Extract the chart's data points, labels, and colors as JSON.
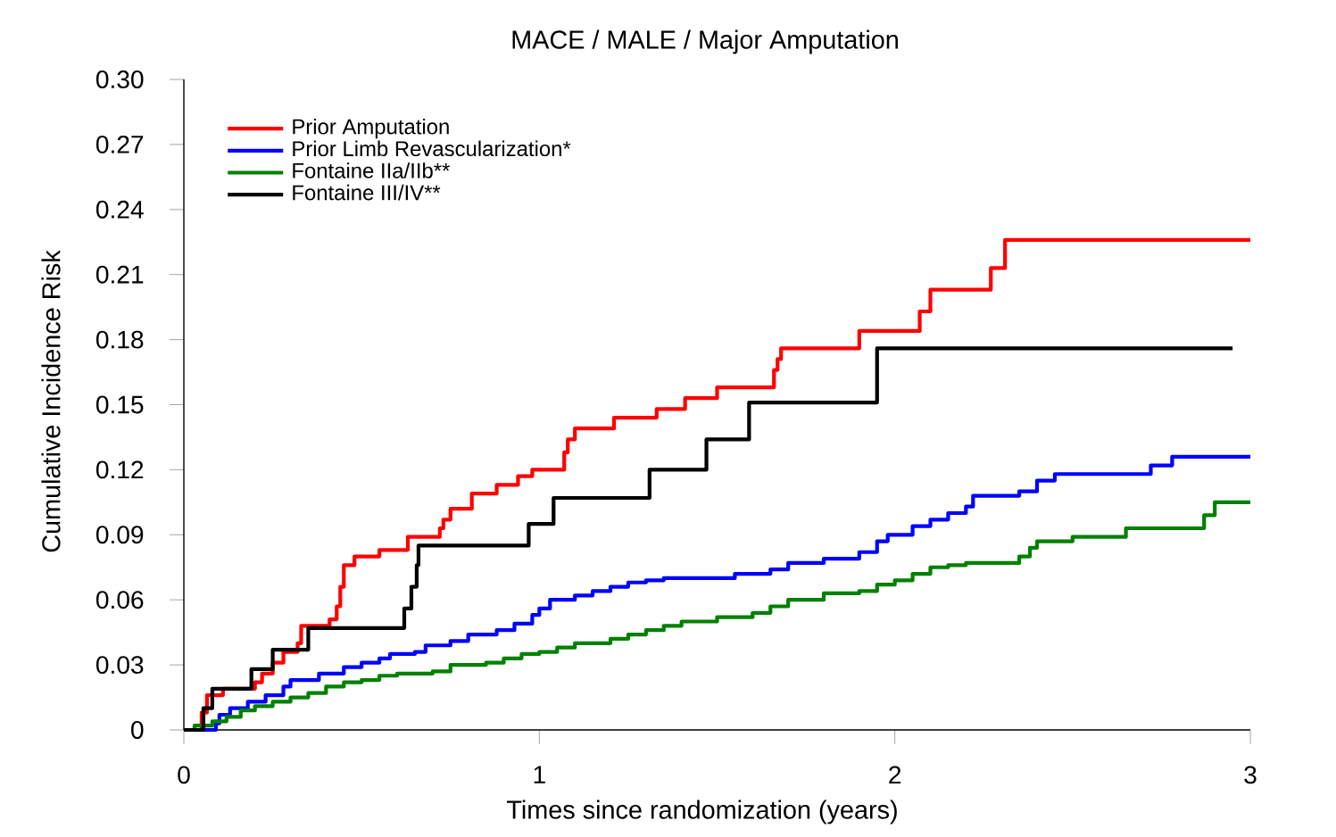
{
  "chart_data": {
    "type": "step",
    "title": "MACE / MALE / Major Amputation",
    "xlabel": "Times since randomization (years)",
    "ylabel": "Cumulative Incidence Risk",
    "xlim": [
      0,
      3
    ],
    "xticks": [
      0,
      1,
      2,
      3
    ],
    "ylim": [
      0,
      0.3
    ],
    "yticks": [
      {
        "value": 0,
        "label": "0"
      },
      0.03,
      0.06,
      0.09,
      0.12,
      0.15,
      0.18,
      0.21,
      0.24,
      0.27,
      {
        "value": 0.3,
        "label": "0.30"
      }
    ],
    "grid": false,
    "legend": "top left",
    "line_style": "solid",
    "marker": "none",
    "series": [
      {
        "name": "Prior Amputation",
        "color": "#ff0000",
        "x": [
          0,
          0.05,
          0.065,
          0.11,
          0.2,
          0.22,
          0.25,
          0.28,
          0.32,
          0.33,
          0.41,
          0.43,
          0.44,
          0.45,
          0.48,
          0.55,
          0.63,
          0.72,
          0.73,
          0.75,
          0.81,
          0.88,
          0.94,
          0.98,
          1.07,
          1.08,
          1.1,
          1.21,
          1.33,
          1.41,
          1.5,
          1.66,
          1.67,
          1.68,
          1.9,
          2.07,
          2.1,
          2.27,
          2.31,
          3
        ],
        "values": [
          0,
          0.008,
          0.016,
          0.019,
          0.022,
          0.026,
          0.031,
          0.036,
          0.04,
          0.048,
          0.051,
          0.057,
          0.066,
          0.076,
          0.08,
          0.083,
          0.089,
          0.093,
          0.097,
          0.102,
          0.109,
          0.113,
          0.117,
          0.12,
          0.128,
          0.134,
          0.139,
          0.144,
          0.148,
          0.153,
          0.158,
          0.166,
          0.171,
          0.176,
          0.184,
          0.193,
          0.203,
          0.213,
          0.226,
          0.226
        ]
      },
      {
        "name": "Prior Limb Revascularization*",
        "color": "#0000ff",
        "x": [
          0,
          0.09,
          0.1,
          0.13,
          0.18,
          0.23,
          0.28,
          0.3,
          0.38,
          0.45,
          0.5,
          0.55,
          0.58,
          0.65,
          0.68,
          0.75,
          0.8,
          0.88,
          0.93,
          0.98,
          1.0,
          1.03,
          1.1,
          1.15,
          1.2,
          1.25,
          1.3,
          1.35,
          1.55,
          1.65,
          1.7,
          1.8,
          1.9,
          1.95,
          1.98,
          2.05,
          2.1,
          2.15,
          2.2,
          2.22,
          2.35,
          2.4,
          2.45,
          2.72,
          2.78,
          3
        ],
        "values": [
          0,
          0.003,
          0.007,
          0.01,
          0.013,
          0.016,
          0.02,
          0.023,
          0.026,
          0.029,
          0.031,
          0.033,
          0.035,
          0.036,
          0.039,
          0.041,
          0.044,
          0.046,
          0.049,
          0.053,
          0.056,
          0.06,
          0.062,
          0.064,
          0.066,
          0.068,
          0.069,
          0.07,
          0.072,
          0.074,
          0.077,
          0.079,
          0.082,
          0.087,
          0.09,
          0.094,
          0.097,
          0.1,
          0.103,
          0.108,
          0.11,
          0.115,
          0.118,
          0.122,
          0.126,
          0.126
        ]
      },
      {
        "name": "Fontaine IIa/IIb**",
        "color": "#008000",
        "x": [
          0,
          0.03,
          0.08,
          0.12,
          0.16,
          0.2,
          0.25,
          0.3,
          0.35,
          0.4,
          0.45,
          0.5,
          0.55,
          0.6,
          0.7,
          0.75,
          0.85,
          0.9,
          0.95,
          1.0,
          1.05,
          1.1,
          1.2,
          1.25,
          1.3,
          1.35,
          1.4,
          1.5,
          1.6,
          1.65,
          1.7,
          1.8,
          1.9,
          1.95,
          2.0,
          2.05,
          2.1,
          2.15,
          2.2,
          2.35,
          2.38,
          2.4,
          2.5,
          2.65,
          2.87,
          2.9,
          3
        ],
        "values": [
          0,
          0.002,
          0.004,
          0.006,
          0.009,
          0.011,
          0.013,
          0.015,
          0.017,
          0.02,
          0.022,
          0.023,
          0.025,
          0.026,
          0.027,
          0.03,
          0.031,
          0.033,
          0.035,
          0.036,
          0.038,
          0.04,
          0.042,
          0.044,
          0.046,
          0.048,
          0.05,
          0.052,
          0.054,
          0.057,
          0.06,
          0.063,
          0.064,
          0.067,
          0.069,
          0.072,
          0.075,
          0.076,
          0.077,
          0.08,
          0.084,
          0.087,
          0.089,
          0.093,
          0.099,
          0.105,
          0.105
        ]
      },
      {
        "name": "Fontaine III/IV**",
        "color": "#000000",
        "x": [
          0,
          0.055,
          0.08,
          0.19,
          0.25,
          0.35,
          0.62,
          0.64,
          0.655,
          0.66,
          0.97,
          1.04,
          1.31,
          1.47,
          1.59,
          1.95,
          2.95
        ],
        "values": [
          0,
          0.01,
          0.019,
          0.028,
          0.037,
          0.047,
          0.056,
          0.066,
          0.076,
          0.085,
          0.095,
          0.107,
          0.12,
          0.134,
          0.151,
          0.176,
          0.176
        ]
      }
    ]
  }
}
